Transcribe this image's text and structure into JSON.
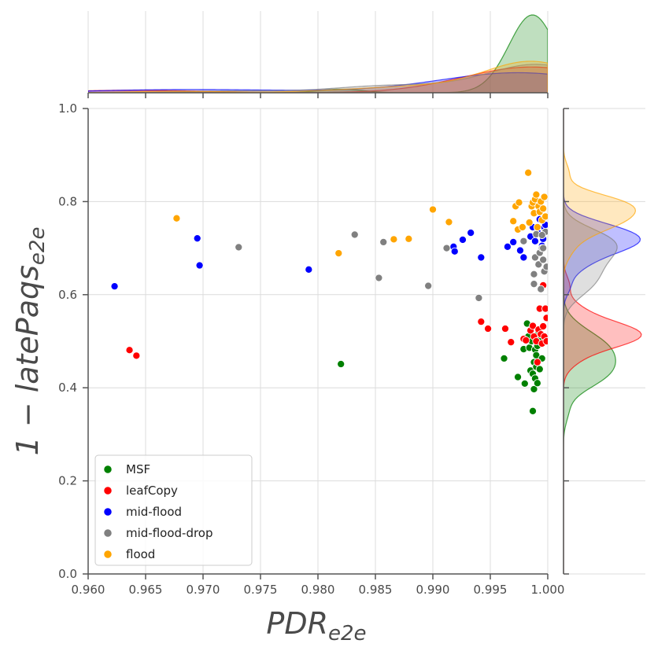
{
  "chart_data": {
    "type": "scatter",
    "title": "",
    "xlabel": {
      "main": "PDR",
      "sub": "e2e"
    },
    "ylabel": {
      "main": "1 − latePaqs",
      "sub": "e2e"
    },
    "xlim": [
      0.96,
      1.0
    ],
    "ylim": [
      0.0,
      1.0
    ],
    "x_ticks": [
      "0.960",
      "0.965",
      "0.970",
      "0.975",
      "0.980",
      "0.985",
      "0.990",
      "0.995",
      "1.000"
    ],
    "y_ticks": [
      "0.0",
      "0.2",
      "0.4",
      "0.6",
      "0.8",
      "1.0"
    ],
    "grid": true,
    "legend_position": "lower-left",
    "marginals": "kde on top (x) and right (y)",
    "series": [
      {
        "name": "MSF",
        "color": "#008000",
        "points": [
          [
            0.982,
            0.451
          ],
          [
            0.9962,
            0.463
          ],
          [
            0.9974,
            0.423
          ],
          [
            0.9979,
            0.483
          ],
          [
            0.998,
            0.409
          ],
          [
            0.9982,
            0.538
          ],
          [
            0.9983,
            0.51
          ],
          [
            0.9984,
            0.486
          ],
          [
            0.9985,
            0.437
          ],
          [
            0.9986,
            0.5
          ],
          [
            0.9987,
            0.35
          ],
          [
            0.9987,
            0.43
          ],
          [
            0.9988,
            0.455
          ],
          [
            0.9988,
            0.397
          ],
          [
            0.9989,
            0.482
          ],
          [
            0.9989,
            0.42
          ],
          [
            0.999,
            0.445
          ],
          [
            0.999,
            0.47
          ],
          [
            0.9991,
            0.41
          ],
          [
            0.9991,
            0.49
          ],
          [
            0.9992,
            0.52
          ],
          [
            0.9993,
            0.44
          ],
          [
            0.9994,
            0.505
          ],
          [
            0.9995,
            0.463
          ]
        ]
      },
      {
        "name": "leafCopy",
        "color": "#ff0000",
        "points": [
          [
            0.9636,
            0.481
          ],
          [
            0.9642,
            0.469
          ],
          [
            0.9942,
            0.542
          ],
          [
            0.9948,
            0.527
          ],
          [
            0.9963,
            0.527
          ],
          [
            0.9968,
            0.498
          ],
          [
            0.9979,
            0.505
          ],
          [
            0.9981,
            0.502
          ],
          [
            0.9985,
            0.523
          ],
          [
            0.9987,
            0.533
          ],
          [
            0.9988,
            0.51
          ],
          [
            0.999,
            0.5
          ],
          [
            0.9991,
            0.455
          ],
          [
            0.9992,
            0.525
          ],
          [
            0.9993,
            0.57
          ],
          [
            0.9994,
            0.515
          ],
          [
            0.9995,
            0.495
          ],
          [
            0.9996,
            0.62
          ],
          [
            0.9997,
            0.51
          ],
          [
            0.9998,
            0.57
          ],
          [
            0.9999,
            0.55
          ],
          [
            0.9999,
            0.5
          ],
          [
            0.9996,
            0.532
          ]
        ]
      },
      {
        "name": "mid-flood",
        "color": "#0000ff",
        "points": [
          [
            0.9623,
            0.618
          ],
          [
            0.9695,
            0.721
          ],
          [
            0.9697,
            0.663
          ],
          [
            0.9792,
            0.654
          ],
          [
            0.9918,
            0.703
          ],
          [
            0.9919,
            0.693
          ],
          [
            0.9926,
            0.718
          ],
          [
            0.9933,
            0.733
          ],
          [
            0.9942,
            0.68
          ],
          [
            0.9965,
            0.703
          ],
          [
            0.997,
            0.713
          ],
          [
            0.9976,
            0.695
          ],
          [
            0.9979,
            0.68
          ],
          [
            0.9985,
            0.725
          ],
          [
            0.9987,
            0.745
          ],
          [
            0.9989,
            0.715
          ],
          [
            0.9991,
            0.735
          ],
          [
            0.9993,
            0.762
          ],
          [
            0.9995,
            0.705
          ],
          [
            0.9997,
            0.745
          ],
          [
            0.9998,
            0.75
          ],
          [
            0.9999,
            0.735
          ],
          [
            0.9996,
            0.72
          ]
        ]
      },
      {
        "name": "mid-flood-drop",
        "color": "#808080",
        "points": [
          [
            0.9731,
            0.702
          ],
          [
            0.9832,
            0.729
          ],
          [
            0.9853,
            0.636
          ],
          [
            0.9857,
            0.713
          ],
          [
            0.9896,
            0.619
          ],
          [
            0.9912,
            0.7
          ],
          [
            0.994,
            0.593
          ],
          [
            0.9979,
            0.715
          ],
          [
            0.9988,
            0.644
          ],
          [
            0.9988,
            0.623
          ],
          [
            0.9989,
            0.68
          ],
          [
            0.999,
            0.73
          ],
          [
            0.9992,
            0.665
          ],
          [
            0.9993,
            0.69
          ],
          [
            0.9994,
            0.612
          ],
          [
            0.9995,
            0.7
          ],
          [
            0.9996,
            0.675
          ],
          [
            0.9997,
            0.65
          ],
          [
            0.9998,
            0.735
          ],
          [
            0.9999,
            0.66
          ],
          [
            0.9996,
            0.7
          ],
          [
            0.9995,
            0.728
          ]
        ]
      },
      {
        "name": "flood",
        "color": "#ffa500",
        "points": [
          [
            0.9677,
            0.764
          ],
          [
            0.9818,
            0.689
          ],
          [
            0.9866,
            0.719
          ],
          [
            0.9879,
            0.72
          ],
          [
            0.99,
            0.783
          ],
          [
            0.9914,
            0.756
          ],
          [
            0.997,
            0.758
          ],
          [
            0.9972,
            0.79
          ],
          [
            0.9974,
            0.74
          ],
          [
            0.9975,
            0.798
          ],
          [
            0.9978,
            0.745
          ],
          [
            0.9983,
            0.862
          ],
          [
            0.9984,
            0.755
          ],
          [
            0.9986,
            0.79
          ],
          [
            0.9987,
            0.798
          ],
          [
            0.9988,
            0.775
          ],
          [
            0.9989,
            0.805
          ],
          [
            0.999,
            0.815
          ],
          [
            0.9991,
            0.745
          ],
          [
            0.9992,
            0.79
          ],
          [
            0.9993,
            0.778
          ],
          [
            0.9994,
            0.8
          ],
          [
            0.9995,
            0.76
          ],
          [
            0.9996,
            0.785
          ],
          [
            0.9997,
            0.81
          ],
          [
            0.9998,
            0.768
          ]
        ]
      }
    ]
  }
}
